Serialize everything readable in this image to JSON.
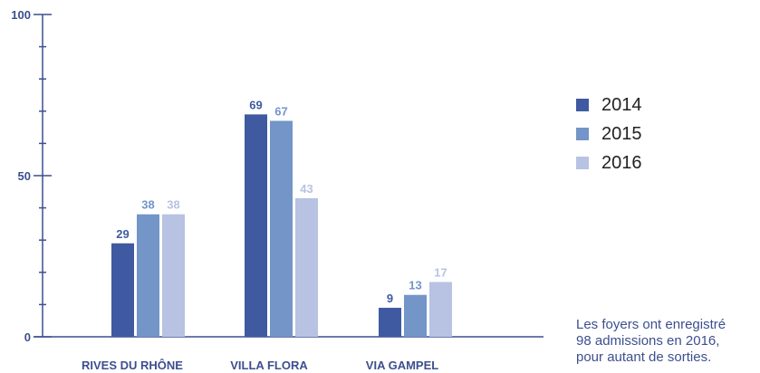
{
  "chart_data": {
    "type": "bar",
    "categories": [
      "RIVES DU RHÔNE",
      "VILLA FLORA",
      "VIA GAMPEL"
    ],
    "series": [
      {
        "name": "2014",
        "values": [
          29,
          69,
          9
        ],
        "color": "#3f5aa0"
      },
      {
        "name": "2015",
        "values": [
          38,
          67,
          13
        ],
        "color": "#7395c8"
      },
      {
        "name": "2016",
        "values": [
          38,
          43,
          17
        ],
        "color": "#b8c2e2"
      }
    ],
    "ylim": [
      0,
      100
    ],
    "yticks_labeled": [
      0,
      50,
      100
    ],
    "yticks_minor_step": 10,
    "grid": false,
    "legend_position": "right",
    "axis_color": "#3d4f8f"
  },
  "note": {
    "lines": [
      "Les foyers ont enregistré",
      "98 admissions en 2016,",
      "pour autant de sorties."
    ]
  }
}
